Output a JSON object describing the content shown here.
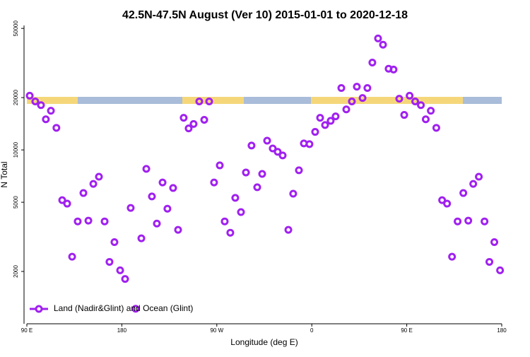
{
  "chart_data": {
    "type": "scatter",
    "title": "42.5N-47.5N August (Ver 10)   2015-01-01 to 2020-12-18",
    "x_label": "Longitude (deg E)",
    "y_label": "N Total",
    "log_y": true,
    "legend": "bottom-left",
    "xlim": [
      90,
      540
    ],
    "xticks": [
      {
        "value": 90,
        "label": "90 E"
      },
      {
        "value": 180,
        "label": "180"
      },
      {
        "value": 270,
        "label": "90 W"
      },
      {
        "value": 360,
        "label": "0"
      },
      {
        "value": 450,
        "label": "90 E"
      },
      {
        "value": 540,
        "label": "180"
      }
    ],
    "ylim": [
      1000,
      52000
    ],
    "yticks": [
      2000,
      5000,
      10000,
      20000,
      50000
    ],
    "series": [
      {
        "name": "Land (Nadir&Glint) and Ocean (Glint)",
        "color": "#a020f0",
        "x": [
          92.7,
          98,
          103.4,
          108,
          112.8,
          118,
          123.5,
          128.2,
          132.9,
          138.2,
          143.6,
          148.3,
          153,
          158.3,
          163.7,
          168.3,
          173,
          178.4,
          183.1,
          188.4,
          193.1,
          198.5,
          203.2,
          208.5,
          213.2,
          218.6,
          223.2,
          228.6,
          233.3,
          238.6,
          243.3,
          248,
          253.4,
          258.1,
          262.8,
          267.4,
          272.8,
          277.5,
          282.8,
          287.5,
          292.9,
          297.6,
          302.9,
          308.3,
          313,
          317.7,
          323,
          327.7,
          332.4,
          337.8,
          342.4,
          347.8,
          352.5,
          357.8,
          363.2,
          367.9,
          372.6,
          377.9,
          382.6,
          388,
          392.7,
          398,
          402.7,
          408.1,
          412.7,
          417.4,
          422.8,
          427.5,
          432.8,
          437.5,
          442.9,
          447.6,
          452.7,
          458,
          463.4,
          468,
          472.8,
          478,
          483.5,
          488.2,
          492.9,
          498.2,
          503.6,
          508.3,
          513,
          518.3,
          523.7,
          528.3,
          533,
          538.4
        ],
        "values": [
          20500,
          19000,
          18100,
          15000,
          16800,
          13400,
          5140,
          4910,
          2430,
          3880,
          5650,
          3920,
          6380,
          7010,
          3880,
          2270,
          2950,
          2030,
          1810,
          4640,
          1220,
          3100,
          7780,
          5400,
          3770,
          6500,
          4590,
          6040,
          3470,
          15300,
          13300,
          14100,
          19000,
          14900,
          19000,
          6500,
          8150,
          3880,
          3340,
          5300,
          4390,
          7420,
          10600,
          6100,
          7280,
          11300,
          10200,
          9750,
          9300,
          3470,
          5600,
          7640,
          10900,
          10800,
          12700,
          15300,
          13900,
          14700,
          15600,
          22700,
          17100,
          19000,
          23100,
          19900,
          22700,
          31800,
          43800,
          40300,
          29300,
          29000,
          19700,
          15900,
          20500,
          19000,
          18100,
          15000,
          16800,
          13400,
          5140,
          4910,
          2430,
          3880,
          5650,
          3920,
          6380,
          7010,
          3880,
          2270,
          2950,
          2030
        ]
      }
    ]
  }
}
